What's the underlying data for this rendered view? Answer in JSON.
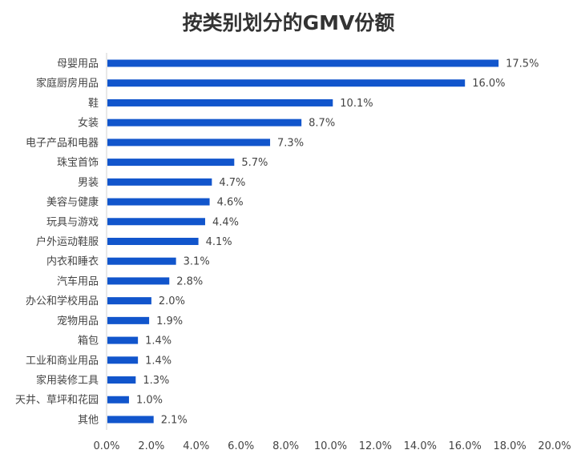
{
  "chart_data": {
    "type": "bar",
    "orientation": "horizontal",
    "title": "按类别划分的GMV份额",
    "categories": [
      "母婴用品",
      "家庭厨房用品",
      "鞋",
      "女装",
      "电子产品和电器",
      "珠宝首饰",
      "男装",
      "美容与健康",
      "玩具与游戏",
      "户外运动鞋服",
      "内衣和睡衣",
      "汽车用品",
      "办公和学校用品",
      "宠物用品",
      "箱包",
      "工业和商业用品",
      "家用装修工具",
      "天井、草坪和花园",
      "其他"
    ],
    "values": [
      17.5,
      16.0,
      10.1,
      8.7,
      7.3,
      5.7,
      4.7,
      4.6,
      4.4,
      4.1,
      3.1,
      2.8,
      2.0,
      1.9,
      1.4,
      1.4,
      1.3,
      1.0,
      2.1
    ],
    "data_labels": [
      "17.5%",
      "16.0%",
      "10.1%",
      "8.7%",
      "7.3%",
      "5.7%",
      "4.7%",
      "4.6%",
      "4.4%",
      "4.1%",
      "3.1%",
      "2.8%",
      "2.0%",
      "1.9%",
      "1.4%",
      "1.4%",
      "1.3%",
      "1.0%",
      "2.1%"
    ],
    "xlim": [
      0,
      20
    ],
    "xticks": [
      "0.0%",
      "2.0%",
      "4.0%",
      "6.0%",
      "8.0%",
      "10.0%",
      "12.0%",
      "14.0%",
      "16.0%",
      "18.0%",
      "20.0%"
    ],
    "xlabel": "",
    "ylabel": "",
    "grid": false,
    "legend": "none",
    "bar_color": "#1155cc"
  }
}
